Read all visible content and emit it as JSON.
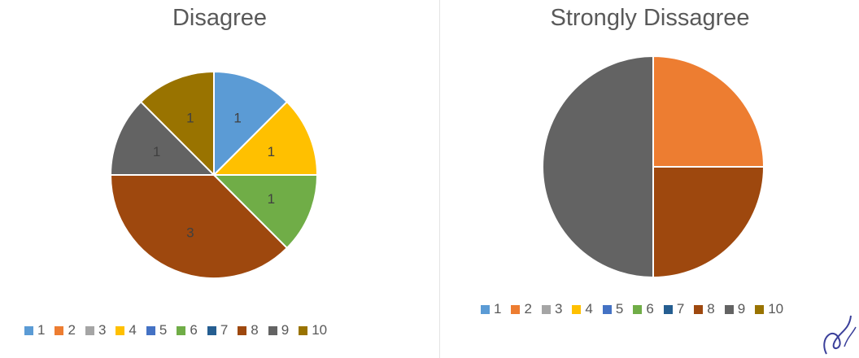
{
  "chart_data": [
    {
      "type": "pie",
      "title": "Disagree",
      "categories": [
        "1",
        "2",
        "3",
        "4",
        "5",
        "6",
        "7",
        "8",
        "9",
        "10"
      ],
      "values": [
        1,
        0,
        0,
        1,
        0,
        1,
        0,
        3,
        1,
        1
      ],
      "data_labels": [
        "1",
        "",
        "",
        "1",
        "",
        "1",
        "",
        "3",
        "1",
        "1"
      ],
      "legend": "bottom"
    },
    {
      "type": "pie",
      "title": "Strongly Dissagree",
      "categories": [
        "1",
        "2",
        "3",
        "4",
        "5",
        "6",
        "7",
        "8",
        "9",
        "10"
      ],
      "values": [
        0,
        1,
        0,
        0,
        0,
        0,
        0,
        1,
        2,
        0
      ],
      "data_labels": [],
      "legend": "bottom"
    }
  ],
  "colors": [
    "#5b9bd5",
    "#ed7d31",
    "#a5a5a5",
    "#ffc000",
    "#4472c4",
    "#70ad47",
    "#255e91",
    "#9e480e",
    "#636363",
    "#997300"
  ]
}
